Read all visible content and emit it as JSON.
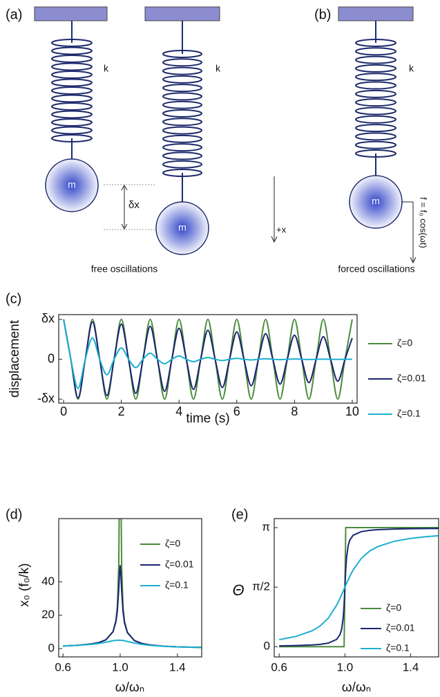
{
  "diagram": {
    "panel_a": "(a)",
    "panel_b": "(b)",
    "spring_labels": [
      "k",
      "k",
      "k"
    ],
    "mass_labels": [
      "m",
      "m",
      "m"
    ],
    "displacement": "δx",
    "direction": "+x",
    "force": "f = f₀ cos(ωt)",
    "captions": [
      "free oscillations",
      "forced oscillations"
    ]
  },
  "chart_data": [
    {
      "type": "line",
      "label": "(c)",
      "xlabel": "time (s)",
      "ylabel": "displacement",
      "legend": "right",
      "x": [
        0,
        0.25,
        0.5,
        0.75,
        1,
        1.25,
        1.5,
        1.75,
        2,
        2.25,
        2.5,
        2.75,
        3,
        3.25,
        3.5,
        3.75,
        4,
        4.25,
        4.5,
        4.75,
        5,
        5.25,
        5.5,
        5.75,
        6,
        6.25,
        6.5,
        6.75,
        7,
        7.25,
        7.5,
        7.75,
        8,
        8.25,
        8.5,
        8.75,
        9,
        9.25,
        9.5,
        9.75,
        10
      ],
      "series": [
        {
          "name": "ζ=0",
          "color": "#4a8a3c",
          "values": [
            1,
            0,
            -1,
            0,
            1,
            0,
            -1,
            0,
            1,
            0,
            -1,
            0,
            1,
            0,
            -1,
            0,
            1,
            0,
            -1,
            0,
            1,
            0,
            -1,
            0,
            1,
            0,
            -1,
            0,
            1,
            0,
            -1,
            0,
            1,
            0,
            -1,
            0,
            1,
            0,
            -1,
            0,
            1
          ]
        },
        {
          "name": "ζ=0.01",
          "color": "#1a2470",
          "values": [
            1,
            0,
            -0.969,
            0,
            0.939,
            0,
            -0.91,
            0,
            0.882,
            0,
            -0.855,
            0,
            0.828,
            0,
            -0.803,
            0,
            0.778,
            0,
            -0.754,
            0,
            0.73,
            0,
            -0.708,
            0,
            0.686,
            0,
            -0.665,
            0,
            0.644,
            0,
            -0.624,
            0,
            0.605,
            0,
            -0.586,
            0,
            0.568,
            0,
            -0.551,
            0,
            0.534
          ]
        },
        {
          "name": "ζ=0.1",
          "color": "#1ab0d0",
          "values": [
            1,
            0,
            -0.73,
            0,
            0.533,
            0,
            -0.39,
            0,
            0.285,
            0,
            -0.208,
            0,
            0.152,
            0,
            -0.111,
            0,
            0.081,
            0,
            -0.059,
            0,
            0.043,
            0,
            -0.032,
            0,
            0.023,
            0,
            -0.017,
            0,
            0.012,
            0,
            -0.009,
            0,
            0.007,
            0,
            -0.005,
            0,
            0.004,
            0,
            -0.003,
            0,
            0.002
          ]
        }
      ],
      "xlim": [
        -0.17,
        10.17
      ],
      "ylim": [
        -1.1,
        1.12
      ],
      "xticks": [
        0,
        2,
        4,
        6,
        8,
        10
      ],
      "yticks": [
        {
          "value": -1,
          "label": "-δx"
        },
        0,
        {
          "value": 1,
          "label": "δx"
        }
      ]
    },
    {
      "type": "line",
      "label": "(d)",
      "xlabel": "ω/ωₙ",
      "ylabel": "x₀ (f₀/k)",
      "legend": "upper right",
      "x": [
        0.6,
        0.7,
        0.8,
        0.85,
        0.9,
        0.95,
        0.97,
        0.98,
        0.99,
        0.995,
        1.0,
        1.005,
        1.01,
        1.02,
        1.03,
        1.05,
        1.1,
        1.15,
        1.2,
        1.3,
        1.4,
        1.5,
        1.6
      ],
      "series": [
        {
          "name": "ζ=0",
          "color": "#4a8a3c",
          "values": [
            1.56,
            1.96,
            2.78,
            3.6,
            5.26,
            10.26,
            16.9,
            25.3,
            50.3,
            100.3,
            null,
            99.8,
            49.8,
            24.8,
            16.4,
            9.76,
            4.76,
            3.1,
            2.27,
            1.45,
            1.04,
            0.8,
            0.64
          ]
        },
        {
          "name": "ζ=0.01",
          "color": "#1a2470",
          "values": [
            1.56,
            1.96,
            2.77,
            3.6,
            5.25,
            10.07,
            16.1,
            22.6,
            35.6,
            44.9,
            50,
            44.5,
            35.1,
            22.1,
            15.6,
            9.56,
            4.76,
            3.1,
            2.27,
            1.45,
            1.04,
            0.8,
            0.64
          ]
        },
        {
          "name": "ζ=0.1",
          "color": "#1ab0d0",
          "values": [
            1.54,
            1.89,
            2.54,
            3.07,
            3.82,
            4.68,
            4.93,
            5.0,
            5.03,
            5.02,
            5,
            4.97,
            4.93,
            4.81,
            4.66,
            4.28,
            3.29,
            2.52,
            2.0,
            1.36,
            1.0,
            0.78,
            0.63
          ]
        }
      ],
      "xlim": [
        0.57,
        1.57
      ],
      "ylim": [
        -5,
        78
      ],
      "xticks": [
        {
          "value": 0.6,
          "label": "0.6"
        },
        {
          "value": 1.0,
          "label": "1.0"
        },
        {
          "value": 1.4,
          "label": "1.4"
        }
      ],
      "yticks": [
        0,
        20,
        40
      ]
    },
    {
      "type": "line",
      "label": "(e)",
      "xlabel": "ω/ωₙ",
      "ylabel": "Θ",
      "legend": "lower right",
      "x": [
        0.6,
        0.7,
        0.8,
        0.85,
        0.9,
        0.95,
        0.97,
        0.98,
        0.99,
        0.995,
        1.0,
        1.005,
        1.01,
        1.02,
        1.03,
        1.05,
        1.1,
        1.15,
        1.2,
        1.3,
        1.4,
        1.5,
        1.6
      ],
      "series": [
        {
          "name": "ζ=0",
          "color": "#4a8a3c",
          "values": [
            0,
            0,
            0,
            0,
            0,
            0,
            0,
            0,
            0,
            0,
            1.5708,
            3.1416,
            3.1416,
            3.1416,
            3.1416,
            3.1416,
            3.1416,
            3.1416,
            3.1416,
            3.1416,
            3.1416,
            3.1416,
            3.1416
          ]
        },
        {
          "name": "ζ=0.01",
          "color": "#1a2470",
          "values": [
            0.019,
            0.028,
            0.044,
            0.061,
            0.094,
            0.193,
            0.317,
            0.46,
            0.783,
            1.106,
            1.571,
            2.034,
            2.354,
            2.674,
            2.815,
            2.94,
            3.037,
            3.07,
            3.087,
            3.104,
            3.112,
            3.118,
            3.121
          ]
        },
        {
          "name": "ζ=0.1",
          "color": "#1ab0d0",
          "values": [
            0.185,
            0.268,
            0.418,
            0.55,
            0.758,
            1.097,
            1.275,
            1.372,
            1.471,
            1.521,
            1.571,
            1.621,
            1.67,
            1.766,
            1.858,
            2.025,
            2.333,
            2.522,
            2.642,
            2.781,
            2.858,
            2.906,
            2.939
          ]
        }
      ],
      "xlim": [
        0.57,
        1.57
      ],
      "ylim": [
        -0.27,
        3.38
      ],
      "xticks": [
        {
          "value": 0.6,
          "label": "0.6"
        },
        {
          "value": 1.0,
          "label": "1.0"
        },
        {
          "value": 1.4,
          "label": "1.4"
        }
      ],
      "yticks": [
        0,
        {
          "value": 1.5708,
          "label": "π/2"
        },
        {
          "value": 3.1416,
          "label": "π"
        }
      ]
    }
  ]
}
